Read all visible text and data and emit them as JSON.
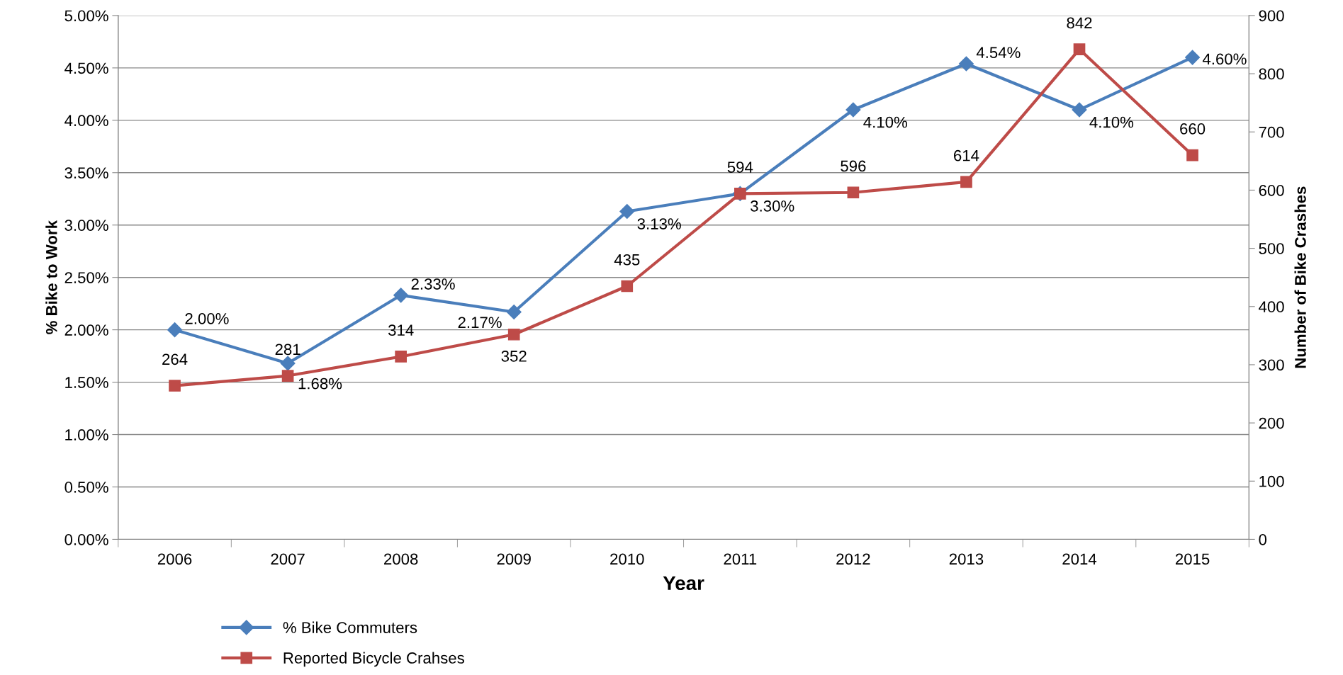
{
  "chart_data": {
    "type": "line",
    "xlabel": "Year",
    "ylabel": "% Bike to Work",
    "y2label": "Number of Bike Crashes",
    "categories": [
      "2006",
      "2007",
      "2008",
      "2009",
      "2010",
      "2011",
      "2012",
      "2013",
      "2014",
      "2015"
    ],
    "series": [
      {
        "name": "% Bike Commuters",
        "color": "#4a7ebb",
        "marker": "diamond",
        "values": [
          2.0,
          1.68,
          2.33,
          2.17,
          3.13,
          3.3,
          4.1,
          4.54,
          4.1,
          4.6
        ],
        "value_labels": [
          "2.00%",
          "1.68%",
          "2.33%",
          "2.17%",
          "3.13%",
          "3.30%",
          "4.10%",
          "4.54%",
          "4.10%",
          "4.60%"
        ]
      },
      {
        "name": "Reported Bicycle Crahses",
        "color": "#be4b48",
        "marker": "square",
        "axis": "y2",
        "values": [
          264,
          281,
          314,
          352,
          435,
          594,
          596,
          614,
          842,
          660
        ],
        "value_labels": [
          "264",
          "281",
          "314",
          "352",
          "435",
          "594",
          "596",
          "614",
          "842",
          "660"
        ]
      }
    ],
    "ylim": [
      0,
      5
    ],
    "yticks": [
      {
        "value": 0,
        "label": "0.00%"
      },
      {
        "value": 0.5,
        "label": "0.50%"
      },
      {
        "value": 1,
        "label": "1.00%"
      },
      {
        "value": 1.5,
        "label": "1.50%"
      },
      {
        "value": 2,
        "label": "2.00%"
      },
      {
        "value": 2.5,
        "label": "2.50%"
      },
      {
        "value": 3,
        "label": "3.00%"
      },
      {
        "value": 3.5,
        "label": "3.50%"
      },
      {
        "value": 4,
        "label": "4.00%"
      },
      {
        "value": 4.5,
        "label": "4.50%"
      },
      {
        "value": 5,
        "label": "5.00%"
      }
    ],
    "y2lim": [
      0,
      900
    ],
    "y2ticks": [
      0,
      100,
      200,
      300,
      400,
      500,
      600,
      700,
      800,
      900
    ],
    "grid": "y",
    "legend": "bottom",
    "line_style": "solid"
  }
}
